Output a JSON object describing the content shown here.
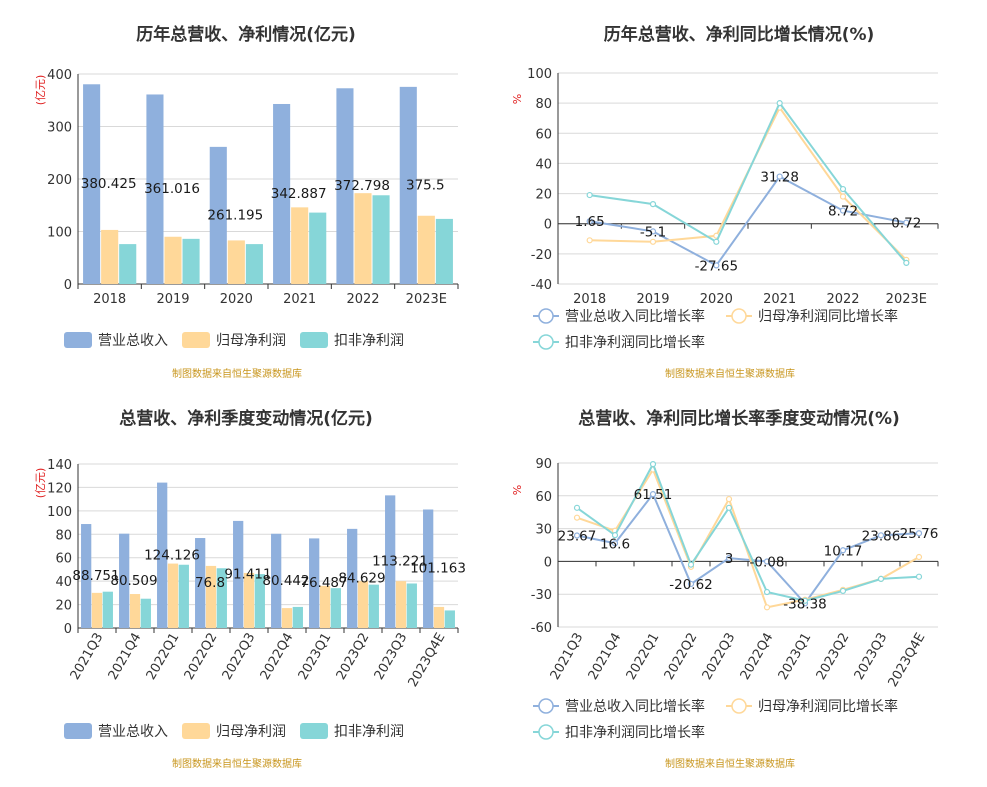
{
  "source": "制图数据来自恒生聚源数据库",
  "colors": {
    "revenue": "#8fb0dd",
    "net_profit": "#ffd899",
    "deducted_profit": "#86d6d8",
    "revenue_line": "#8fb0dd",
    "net_profit_line": "#ffd899",
    "deducted_profit_line": "#86d6d8"
  },
  "chart_data": [
    {
      "type": "bar",
      "title": "历年总营收、净利情况(亿元)",
      "unit": "(亿元)",
      "categories": [
        "2018",
        "2019",
        "2020",
        "2021",
        "2022",
        "2023E"
      ],
      "ylim": [
        0,
        400
      ],
      "yticks": [
        0,
        100,
        200,
        300,
        400
      ],
      "series": [
        {
          "name": "营业总收入",
          "values": [
            380.425,
            361.016,
            261.195,
            342.887,
            372.798,
            375.5
          ],
          "labels": [
            "380.425",
            "361.016",
            "261.195",
            "342.887",
            "372.798",
            "375.5"
          ]
        },
        {
          "name": "归母净利润",
          "values": [
            103,
            90,
            83,
            146,
            173,
            130
          ]
        },
        {
          "name": "扣非净利润",
          "values": [
            76,
            86,
            76,
            136,
            169,
            124
          ]
        }
      ],
      "legend": "bottom"
    },
    {
      "type": "line",
      "title": "历年总营收、净利同比增长情况(%)",
      "unit": "%",
      "categories": [
        "2018",
        "2019",
        "2020",
        "2021",
        "2022",
        "2023E"
      ],
      "ylim": [
        -40,
        100
      ],
      "yticks": [
        -40,
        -20,
        0,
        20,
        40,
        60,
        80,
        100
      ],
      "series": [
        {
          "name": "营业总收入同比增长率",
          "values": [
            1.65,
            -5.1,
            -27.65,
            31.28,
            8.72,
            0.72
          ],
          "labels": [
            "1.65",
            "-5.1",
            "-27.65",
            "31.28",
            "8.72",
            "0.72"
          ]
        },
        {
          "name": "归母净利润同比增长率",
          "values": [
            -11,
            -12,
            -8,
            77,
            18,
            -24
          ]
        },
        {
          "name": "扣非净利润同比增长率",
          "values": [
            19,
            13,
            -12,
            80,
            23,
            -26
          ]
        }
      ],
      "legend": "bottom"
    },
    {
      "type": "bar",
      "title": "总营收、净利季度变动情况(亿元)",
      "unit": "(亿元)",
      "categories": [
        "2021Q3",
        "2021Q4",
        "2022Q1",
        "2022Q2",
        "2022Q3",
        "2022Q4",
        "2023Q1",
        "2023Q2",
        "2023Q3",
        "2023Q4E"
      ],
      "ylim": [
        0,
        140
      ],
      "yticks": [
        0,
        20,
        40,
        60,
        80,
        100,
        120,
        140
      ],
      "series": [
        {
          "name": "营业总收入",
          "values": [
            88.751,
            80.509,
            124.126,
            76.8,
            91.411,
            80.442,
            76.487,
            84.629,
            113.221,
            101.163
          ],
          "labels": [
            "88.751",
            "80.509",
            "124.126",
            "76.8",
            "91.411",
            "80.442",
            "76.487",
            "84.629",
            "113.221",
            "101.163"
          ]
        },
        {
          "name": "归母净利润",
          "values": [
            30,
            29,
            55,
            53,
            47,
            17,
            36,
            40,
            40,
            18
          ]
        },
        {
          "name": "扣非净利润",
          "values": [
            31,
            25,
            54,
            51,
            46,
            18,
            34,
            37,
            38,
            15
          ]
        }
      ],
      "legend": "bottom"
    },
    {
      "type": "line",
      "title": "总营收、净利同比增长率季度变动情况(%)",
      "unit": "%",
      "categories": [
        "2021Q3",
        "2021Q4",
        "2022Q1",
        "2022Q2",
        "2022Q3",
        "2022Q4",
        "2023Q1",
        "2023Q2",
        "2023Q3",
        "2023Q4E"
      ],
      "ylim": [
        -60,
        90
      ],
      "yticks": [
        -60,
        -30,
        0,
        30,
        60,
        90
      ],
      "series": [
        {
          "name": "营业总收入同比增长率",
          "values": [
            23.67,
            16.6,
            61.51,
            -20.62,
            3,
            -0.08,
            -38.38,
            10.17,
            23.86,
            25.76
          ],
          "labels": [
            "23.67",
            "16.6",
            "61.51",
            "-20.62",
            "3",
            "-0.08",
            "-38.38",
            "10.17",
            "23.86",
            "25.76"
          ]
        },
        {
          "name": "归母净利润同比增长率",
          "values": [
            40,
            28,
            84,
            -5,
            57,
            -42,
            -35,
            -26,
            -16,
            4
          ]
        },
        {
          "name": "扣非净利润同比增长率",
          "values": [
            49,
            24,
            89,
            -3,
            49,
            -28,
            -36,
            -27,
            -16,
            -14
          ]
        }
      ],
      "legend": "bottom"
    }
  ]
}
